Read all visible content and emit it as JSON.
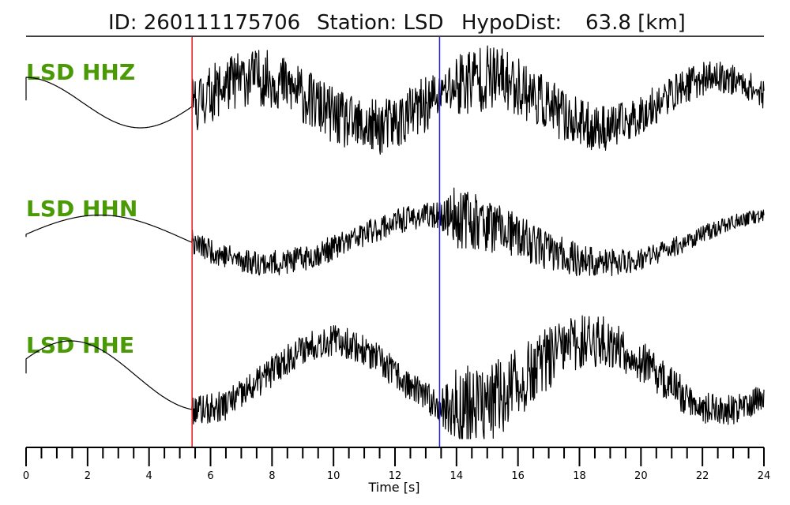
{
  "title": {
    "id_label": "ID: 260111175706",
    "station_label": "Station: LSD",
    "hypodist_label": "HypoDist:",
    "hypodist_value": "63.8 [km]"
  },
  "colors": {
    "label_green": "#4a9a06",
    "p_pick": "#e8161b",
    "s_pick": "#1c1ce3",
    "trace": "#000000"
  },
  "chart_data": {
    "type": "line",
    "title": "ID: 260111175706   Station: LSD   HypoDist:    63.8 [km]",
    "xlabel": "Time [s]",
    "ylabel": "",
    "xlim": [
      0,
      24
    ],
    "major_ticks": [
      0,
      2,
      4,
      6,
      8,
      10,
      12,
      14,
      16,
      18,
      20,
      22,
      24
    ],
    "minor_tick_step": 0.5,
    "picks": [
      {
        "type": "P",
        "time": 5.4
      },
      {
        "type": "S",
        "time": 13.45
      }
    ],
    "series": [
      {
        "name": "LSD HHZ",
        "low_period": 7.5,
        "low_amp": 0.4,
        "low_phase": 1.6,
        "noise_before_p": 0.0,
        "noise_p_to_s": 0.45,
        "noise_after_s": 0.62,
        "coda_decay": 0.1,
        "seed": 11
      },
      {
        "name": "LSD HHN",
        "low_period": 11.0,
        "low_amp": 0.38,
        "low_phase": 0.2,
        "noise_before_p": 0.0,
        "noise_p_to_s": 0.2,
        "noise_after_s": 0.55,
        "coda_decay": 0.16,
        "seed": 23
      },
      {
        "name": "LSD HHE",
        "low_period": 8.5,
        "low_amp": 0.55,
        "low_phase": 0.5,
        "noise_before_p": 0.0,
        "noise_p_to_s": 0.25,
        "noise_after_s": 0.8,
        "coda_decay": 0.13,
        "seed": 37
      }
    ]
  }
}
